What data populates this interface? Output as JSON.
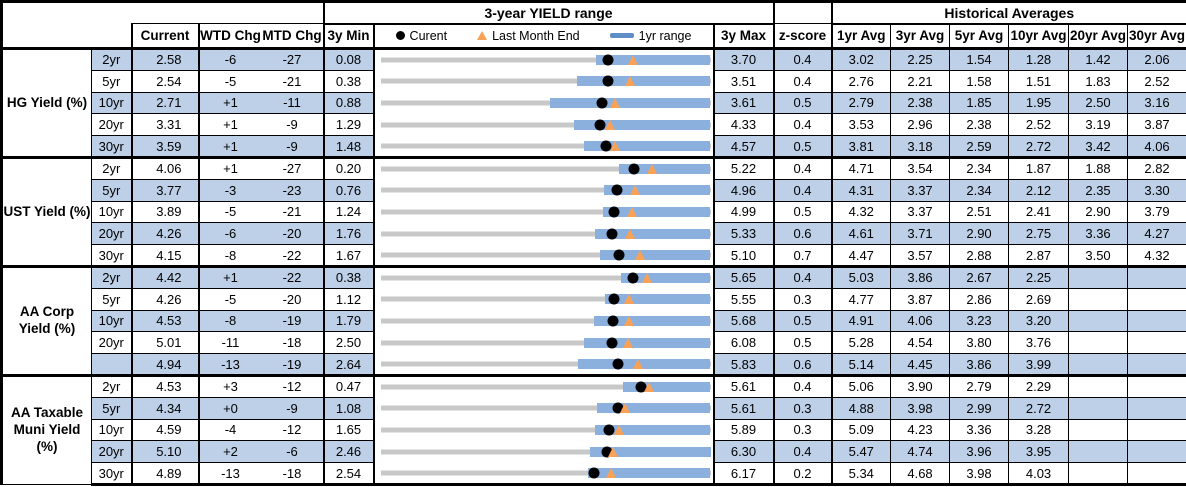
{
  "header": {
    "range_title": "3-year YIELD range",
    "hist_title": "Historical Averages",
    "col_current": "Current",
    "col_wtd": "WTD Chg",
    "col_mtd": "MTD Chg",
    "col_min": "3y Min",
    "col_max": "3y Max",
    "col_z": "z-score",
    "avg_cols": [
      "1yr Avg",
      "3yr Avg",
      "5yr Avg",
      "10yr Avg",
      "20yr Avg",
      "30yr Avg"
    ],
    "legend": {
      "current": "Curent",
      "last_month_end": "Last Month End",
      "range": "1yr range"
    }
  },
  "colors": {
    "row_shade": "#BDD0E8",
    "range_bar": "#8CB0DE",
    "track_gray": "#C8C8C8",
    "triangle_orange": "#F9A257",
    "marker_black": "#000000"
  },
  "chart_data": {
    "type": "table",
    "title": "3-year YIELD range",
    "columns": [
      "Current",
      "WTD Chg",
      "MTD Chg",
      "3y Min",
      "3y Max",
      "z-score",
      "1yr Avg",
      "3yr Avg",
      "5yr Avg",
      "10yr Avg",
      "20yr Avg",
      "30yr Avg"
    ],
    "bullet_chart": {
      "axis": "each row spans 3y Min to 3y Max",
      "markers": {
        "dot": "current yield",
        "triangle": "last month end yield",
        "bar": "1yr range (low to 3y max)"
      }
    },
    "groups": [
      {
        "label": "HG Yield (%)",
        "rows": [
          {
            "tenor": "2yr",
            "current": "2.58",
            "wtd": "-6",
            "mtd": "-27",
            "min": "0.08",
            "max": "3.70",
            "z": "0.4",
            "avgs": [
              "3.02",
              "2.25",
              "1.54",
              "1.28",
              "1.42",
              "2.06"
            ],
            "range": {
              "min": 0.08,
              "max": 3.7,
              "bar_lo": 2.44,
              "bar_hi": 3.7,
              "dot": 2.58,
              "tri": 2.85
            }
          },
          {
            "tenor": "5yr",
            "current": "2.54",
            "wtd": "-5",
            "mtd": "-21",
            "min": "0.38",
            "max": "3.51",
            "z": "0.4",
            "avgs": [
              "2.76",
              "2.21",
              "1.58",
              "1.51",
              "1.83",
              "2.52"
            ],
            "range": {
              "min": 0.38,
              "max": 3.51,
              "bar_lo": 2.24,
              "bar_hi": 3.51,
              "dot": 2.54,
              "tri": 2.75
            }
          },
          {
            "tenor": "10yr",
            "current": "2.71",
            "wtd": "+1",
            "mtd": "-11",
            "min": "0.88",
            "max": "3.61",
            "z": "0.5",
            "avgs": [
              "2.79",
              "2.38",
              "1.85",
              "1.95",
              "2.50",
              "3.16"
            ],
            "range": {
              "min": 0.88,
              "max": 3.61,
              "bar_lo": 2.28,
              "bar_hi": 3.61,
              "dot": 2.71,
              "tri": 2.82
            }
          },
          {
            "tenor": "20yr",
            "current": "3.31",
            "wtd": "+1",
            "mtd": "-9",
            "min": "1.29",
            "max": "4.33",
            "z": "0.4",
            "avgs": [
              "3.53",
              "2.96",
              "2.38",
              "2.52",
              "3.19",
              "3.87"
            ],
            "range": {
              "min": 1.29,
              "max": 4.33,
              "bar_lo": 3.07,
              "bar_hi": 4.33,
              "dot": 3.31,
              "tri": 3.4
            }
          },
          {
            "tenor": "30yr",
            "current": "3.59",
            "wtd": "+1",
            "mtd": "-9",
            "min": "1.48",
            "max": "4.57",
            "z": "0.5",
            "avgs": [
              "3.81",
              "3.18",
              "2.59",
              "2.72",
              "3.42",
              "4.06"
            ],
            "range": {
              "min": 1.48,
              "max": 4.57,
              "bar_lo": 3.39,
              "bar_hi": 4.57,
              "dot": 3.59,
              "tri": 3.68
            }
          }
        ]
      },
      {
        "label": "UST Yield (%)",
        "rows": [
          {
            "tenor": "2yr",
            "current": "4.06",
            "wtd": "+1",
            "mtd": "-27",
            "min": "0.20",
            "max": "5.22",
            "z": "0.4",
            "avgs": [
              "4.71",
              "3.54",
              "2.34",
              "1.87",
              "1.88",
              "2.82"
            ],
            "range": {
              "min": 0.2,
              "max": 5.22,
              "bar_lo": 3.83,
              "bar_hi": 5.22,
              "dot": 4.06,
              "tri": 4.33
            }
          },
          {
            "tenor": "5yr",
            "current": "3.77",
            "wtd": "-3",
            "mtd": "-23",
            "min": "0.76",
            "max": "4.96",
            "z": "0.4",
            "avgs": [
              "4.31",
              "3.37",
              "2.34",
              "2.12",
              "2.35",
              "3.30"
            ],
            "range": {
              "min": 0.76,
              "max": 4.96,
              "bar_lo": 3.61,
              "bar_hi": 4.96,
              "dot": 3.77,
              "tri": 4.0
            }
          },
          {
            "tenor": "10yr",
            "current": "3.89",
            "wtd": "-5",
            "mtd": "-21",
            "min": "1.24",
            "max": "4.99",
            "z": "0.5",
            "avgs": [
              "4.32",
              "3.37",
              "2.51",
              "2.41",
              "2.90",
              "3.79"
            ],
            "range": {
              "min": 1.24,
              "max": 4.99,
              "bar_lo": 3.77,
              "bar_hi": 4.99,
              "dot": 3.89,
              "tri": 4.1
            }
          },
          {
            "tenor": "20yr",
            "current": "4.26",
            "wtd": "-6",
            "mtd": "-20",
            "min": "1.76",
            "max": "5.33",
            "z": "0.6",
            "avgs": [
              "4.61",
              "3.71",
              "2.90",
              "2.75",
              "3.36",
              "4.27"
            ],
            "range": {
              "min": 1.76,
              "max": 5.33,
              "bar_lo": 4.08,
              "bar_hi": 5.33,
              "dot": 4.26,
              "tri": 4.46
            }
          },
          {
            "tenor": "30yr",
            "current": "4.15",
            "wtd": "-8",
            "mtd": "-22",
            "min": "1.67",
            "max": "5.10",
            "z": "0.7",
            "avgs": [
              "4.47",
              "3.57",
              "2.88",
              "2.87",
              "3.50",
              "4.32"
            ],
            "range": {
              "min": 1.67,
              "max": 5.1,
              "bar_lo": 3.95,
              "bar_hi": 5.1,
              "dot": 4.15,
              "tri": 4.37
            }
          }
        ]
      },
      {
        "label": "AA Corp Yield (%)",
        "rows": [
          {
            "tenor": "2yr",
            "current": "4.42",
            "wtd": "+1",
            "mtd": "-22",
            "min": "0.38",
            "max": "5.65",
            "z": "0.4",
            "avgs": [
              "5.03",
              "3.86",
              "2.67",
              "2.25",
              "",
              ""
            ],
            "range": {
              "min": 0.38,
              "max": 5.65,
              "bar_lo": 4.22,
              "bar_hi": 5.65,
              "dot": 4.42,
              "tri": 4.64
            }
          },
          {
            "tenor": "5yr",
            "current": "4.26",
            "wtd": "-5",
            "mtd": "-20",
            "min": "1.12",
            "max": "5.55",
            "z": "0.3",
            "avgs": [
              "4.77",
              "3.87",
              "2.86",
              "2.69",
              "",
              ""
            ],
            "range": {
              "min": 1.12,
              "max": 5.55,
              "bar_lo": 4.14,
              "bar_hi": 5.55,
              "dot": 4.26,
              "tri": 4.46
            }
          },
          {
            "tenor": "10yr",
            "current": "4.53",
            "wtd": "-8",
            "mtd": "-19",
            "min": "1.79",
            "max": "5.68",
            "z": "0.5",
            "avgs": [
              "4.91",
              "4.06",
              "3.23",
              "3.20",
              "",
              ""
            ],
            "range": {
              "min": 1.79,
              "max": 5.68,
              "bar_lo": 4.31,
              "bar_hi": 5.68,
              "dot": 4.53,
              "tri": 4.72
            }
          },
          {
            "tenor": "20yr",
            "current": "5.01",
            "wtd": "-11",
            "mtd": "-18",
            "min": "2.50",
            "max": "6.08",
            "z": "0.5",
            "avgs": [
              "5.28",
              "4.54",
              "3.80",
              "3.76",
              "",
              ""
            ],
            "range": {
              "min": 2.5,
              "max": 6.08,
              "bar_lo": 4.71,
              "bar_hi": 6.08,
              "dot": 5.01,
              "tri": 5.19
            }
          },
          {
            "tenor": "",
            "current": "4.94",
            "wtd": "-13",
            "mtd": "-19",
            "min": "2.64",
            "max": "5.83",
            "z": "0.6",
            "avgs": [
              "5.14",
              "4.45",
              "3.86",
              "3.99",
              "",
              ""
            ],
            "range": {
              "min": 2.64,
              "max": 5.83,
              "bar_lo": 4.55,
              "bar_hi": 5.83,
              "dot": 4.94,
              "tri": 5.13
            }
          }
        ]
      },
      {
        "label": "AA Taxable Muni Yield (%)",
        "rows": [
          {
            "tenor": "2yr",
            "current": "4.53",
            "wtd": "+3",
            "mtd": "-12",
            "min": "0.47",
            "max": "5.61",
            "z": "0.4",
            "avgs": [
              "5.06",
              "3.90",
              "2.79",
              "2.29",
              "",
              ""
            ],
            "range": {
              "min": 0.47,
              "max": 5.61,
              "bar_lo": 4.24,
              "bar_hi": 5.61,
              "dot": 4.53,
              "tri": 4.65
            }
          },
          {
            "tenor": "5yr",
            "current": "4.34",
            "wtd": "+0",
            "mtd": "-9",
            "min": "1.08",
            "max": "5.61",
            "z": "0.3",
            "avgs": [
              "4.88",
              "3.98",
              "2.99",
              "2.72",
              "",
              ""
            ],
            "range": {
              "min": 1.08,
              "max": 5.61,
              "bar_lo": 4.05,
              "bar_hi": 5.61,
              "dot": 4.34,
              "tri": 4.43
            }
          },
          {
            "tenor": "10yr",
            "current": "4.59",
            "wtd": "-4",
            "mtd": "-12",
            "min": "1.65",
            "max": "5.89",
            "z": "0.3",
            "avgs": [
              "5.09",
              "4.23",
              "3.36",
              "3.28",
              "",
              ""
            ],
            "range": {
              "min": 1.65,
              "max": 5.89,
              "bar_lo": 4.41,
              "bar_hi": 5.89,
              "dot": 4.59,
              "tri": 4.71
            }
          },
          {
            "tenor": "20yr",
            "current": "5.10",
            "wtd": "+2",
            "mtd": "-6",
            "min": "2.46",
            "max": "6.30",
            "z": "0.4",
            "avgs": [
              "5.47",
              "4.74",
              "3.96",
              "3.95",
              "",
              ""
            ],
            "range": {
              "min": 2.46,
              "max": 6.3,
              "bar_lo": 4.9,
              "bar_hi": 6.3,
              "dot": 5.1,
              "tri": 5.16
            }
          },
          {
            "tenor": "30yr",
            "current": "4.89",
            "wtd": "-13",
            "mtd": "-18",
            "min": "2.54",
            "max": "6.17",
            "z": "0.2",
            "avgs": [
              "5.34",
              "4.68",
              "3.98",
              "4.03",
              "",
              ""
            ],
            "range": {
              "min": 2.54,
              "max": 6.17,
              "bar_lo": 4.82,
              "bar_hi": 6.17,
              "dot": 4.89,
              "tri": 5.07
            }
          }
        ]
      }
    ]
  }
}
